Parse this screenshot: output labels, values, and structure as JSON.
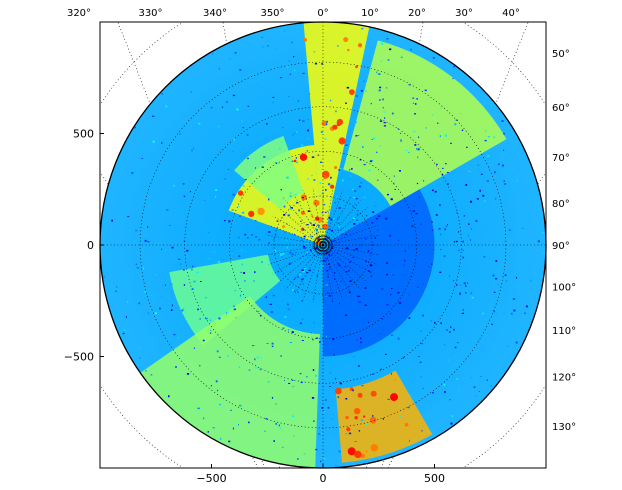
{
  "chart_data": {
    "type": "heatmap",
    "projection": "polar radar PPI (map projection)",
    "colormap": "jet",
    "grid": "dotted",
    "xlim": [
      -1000,
      1000
    ],
    "ylim": [
      -1000,
      1000
    ],
    "x_ticks": [
      -500,
      0,
      500
    ],
    "x_tick_labels": [
      "−500",
      "0",
      "500"
    ],
    "y_ticks": [
      500,
      0,
      -500
    ],
    "y_tick_labels": [
      "500",
      "0",
      "−500"
    ],
    "top_longitude_labels": [
      "320°",
      "330°",
      "340°",
      "350°",
      "0°",
      "10°",
      "20°",
      "30°",
      "40°"
    ],
    "top_longitude_values": [
      320,
      330,
      340,
      350,
      0,
      10,
      20,
      30,
      40
    ],
    "right_latitude_labels": [
      "50°",
      "60°",
      "70°",
      "80°",
      "90°",
      "100°",
      "110°",
      "120°",
      "130°"
    ],
    "right_latitude_values": [
      50,
      60,
      70,
      80,
      90,
      100,
      110,
      120,
      130
    ],
    "background_level": 0.3,
    "regions": [
      {
        "azimuth_range": [
          -5,
          12
        ],
        "range": [
          30,
          1000
        ],
        "level": 0.62
      },
      {
        "azimuth_range": [
          15,
          60
        ],
        "range": [
          350,
          950
        ],
        "level": 0.55
      },
      {
        "azimuth_range": [
          -70,
          -5
        ],
        "range": [
          20,
          450
        ],
        "level": 0.62
      },
      {
        "azimuth_range": [
          -50,
          -20
        ],
        "range": [
          250,
          520
        ],
        "level": 0.5
      },
      {
        "azimuth_range": [
          -130,
          -100
        ],
        "range": [
          250,
          700
        ],
        "level": 0.48
      },
      {
        "azimuth_range": [
          -178,
          -125
        ],
        "range": [
          400,
          1000
        ],
        "level": 0.52
      },
      {
        "azimuth_range": [
          150,
          175
        ],
        "range": [
          650,
          980
        ],
        "level": 0.7
      },
      {
        "azimuth_range": [
          60,
          180
        ],
        "range": [
          30,
          500
        ],
        "level": 0.22
      }
    ],
    "colors": {
      "land_low": "#0000e0",
      "mid": "#00c8ff",
      "high": "#ffff40",
      "peak": "#ff6000"
    }
  }
}
